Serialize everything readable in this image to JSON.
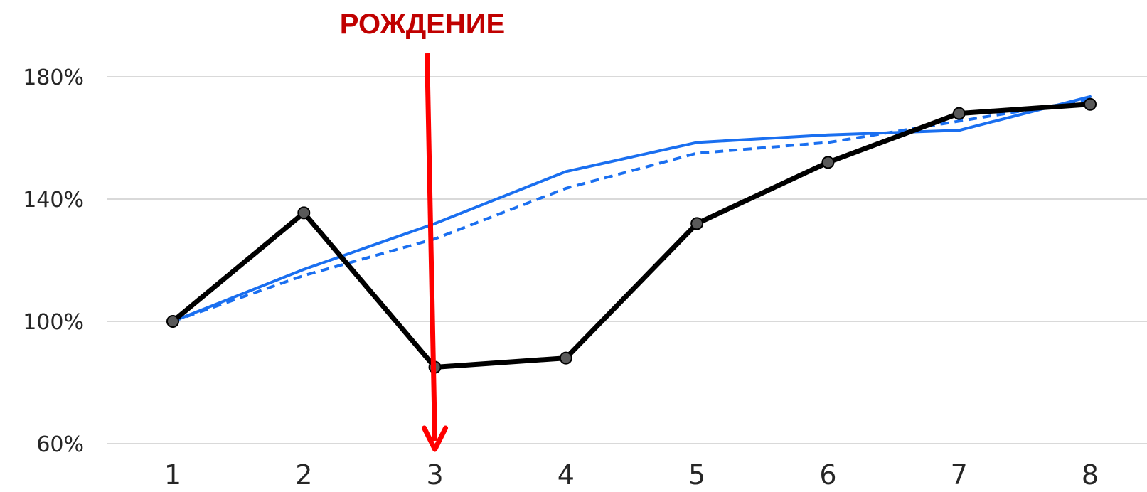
{
  "chart_data": {
    "type": "line",
    "title": "",
    "xlabel": "",
    "ylabel": "",
    "x": [
      1,
      2,
      3,
      4,
      5,
      6,
      7,
      8
    ],
    "x_tick_labels": [
      "1",
      "2",
      "3",
      "4",
      "5",
      "6",
      "7",
      "8"
    ],
    "y_ticks": [
      60,
      100,
      140,
      180
    ],
    "y_tick_labels": [
      "60%",
      "100%",
      "140%",
      "180%"
    ],
    "ylim": [
      60,
      180
    ],
    "grid": "horizontal",
    "legend": "none",
    "series": [
      {
        "values": [
          100,
          135.5,
          85,
          88,
          132,
          152,
          168,
          171
        ],
        "color": "#000000",
        "style": "solid-thick-markers"
      },
      {
        "values": [
          100,
          117,
          132,
          149,
          158.5,
          161,
          162.5,
          173.5
        ],
        "color": "#1a6ff0",
        "style": "solid"
      },
      {
        "values": [
          100,
          115,
          127,
          143.5,
          155,
          158.5,
          165.5,
          172.5
        ],
        "color": "#1a6ff0",
        "style": "dashed"
      }
    ],
    "annotations": [
      {
        "text": "РОЖДЕНИЕ",
        "x": 3,
        "color": "#c00000",
        "arrow_color": "#ff0000",
        "arrow": "down"
      }
    ]
  }
}
